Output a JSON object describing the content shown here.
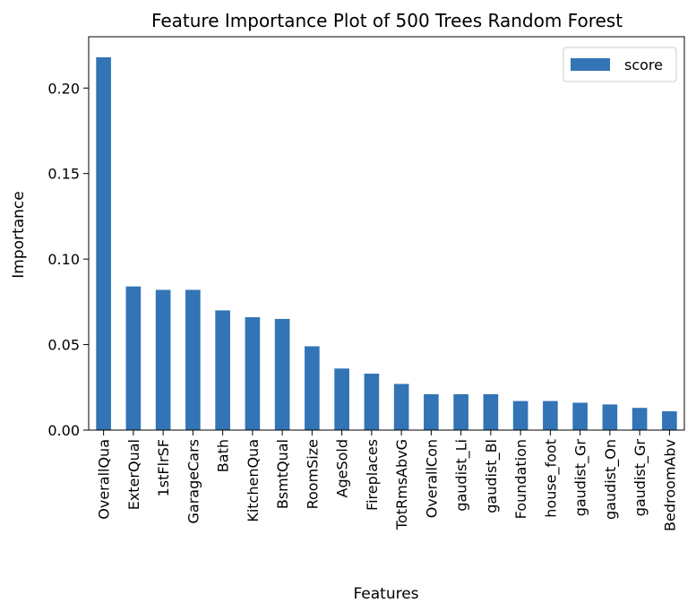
{
  "chart_data": {
    "type": "bar",
    "title": "Feature Importance Plot of 500 Trees Random Forest",
    "xlabel": "Features",
    "ylabel": "Importance",
    "ylim": [
      0,
      0.23
    ],
    "yticks": [
      "0.00",
      "0.05",
      "0.10",
      "0.15",
      "0.20"
    ],
    "legend_position": "top-right",
    "grid": false,
    "categories": [
      "OverallQua",
      "ExterQual",
      "1stFlrSF",
      "GarageCars",
      "Bath",
      "KitchenQua",
      "BsmtQual",
      "RoomSize",
      "AgeSold",
      "Fireplaces",
      "TotRmsAbvG",
      "OverallCon",
      "gaudist_Li",
      "gaudist_Bl",
      "Foundation",
      "house_foot",
      "gaudist_Gr",
      "gaudist_On",
      "gaudist_Gr",
      "BedroomAbv"
    ],
    "series": [
      {
        "name": "score",
        "color": "#3274b5",
        "values": [
          0.218,
          0.084,
          0.082,
          0.082,
          0.07,
          0.066,
          0.065,
          0.049,
          0.036,
          0.033,
          0.027,
          0.021,
          0.021,
          0.021,
          0.017,
          0.017,
          0.016,
          0.015,
          0.013,
          0.011
        ]
      }
    ]
  }
}
